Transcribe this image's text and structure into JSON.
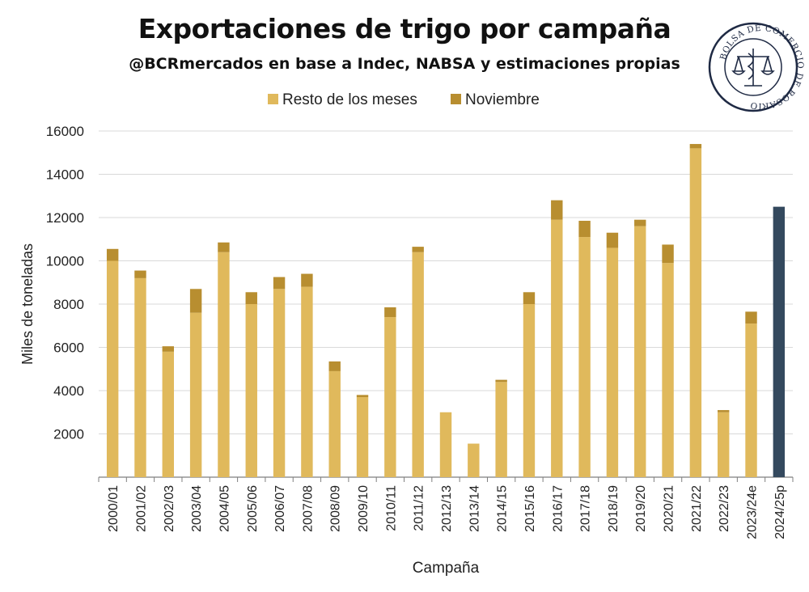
{
  "title": "Exportaciones de trigo por campaña",
  "subtitle": "@BCRmercados en base a Indec, NABSA y estimaciones propias",
  "logo_text": "BOLSA DE COMERCIO DE ROSARIO",
  "colors": {
    "resto": "#E0B95C",
    "noviembre": "#B88E30",
    "highlight": "#34495E",
    "grid": "#D9D9D9",
    "axis": "#7F7F7F",
    "text": "#222222"
  },
  "chart_data": {
    "type": "bar",
    "stacked": true,
    "xlabel": "Campaña",
    "ylabel": "Miles de toneladas",
    "ylim": [
      0,
      16000
    ],
    "yticks": [
      2000,
      4000,
      6000,
      8000,
      10000,
      12000,
      14000,
      16000
    ],
    "grid": true,
    "legend_position": "top",
    "categories": [
      "2000/01",
      "2001/02",
      "2002/03",
      "2003/04",
      "2004/05",
      "2005/06",
      "2006/07",
      "2007/08",
      "2008/09",
      "2009/10",
      "2010/11",
      "2011/12",
      "2012/13",
      "2013/14",
      "2014/15",
      "2015/16",
      "2016/17",
      "2017/18",
      "2018/19",
      "2019/20",
      "2020/21",
      "2021/22",
      "2022/23",
      "2023/24e",
      "2024/25p"
    ],
    "series": [
      {
        "name": "Resto de los meses",
        "values": [
          10000,
          9200,
          5800,
          7600,
          10400,
          8000,
          8700,
          8800,
          4900,
          3700,
          7400,
          10400,
          3000,
          1550,
          4400,
          8000,
          11900,
          11100,
          10600,
          11600,
          9900,
          15200,
          3000,
          7100,
          0
        ]
      },
      {
        "name": "Noviembre",
        "values": [
          550,
          350,
          250,
          1100,
          450,
          550,
          550,
          600,
          450,
          100,
          450,
          250,
          0,
          0,
          100,
          550,
          900,
          750,
          700,
          300,
          850,
          200,
          100,
          550,
          0
        ]
      }
    ],
    "highlight": {
      "category": "2024/25p",
      "value": 12500
    }
  }
}
